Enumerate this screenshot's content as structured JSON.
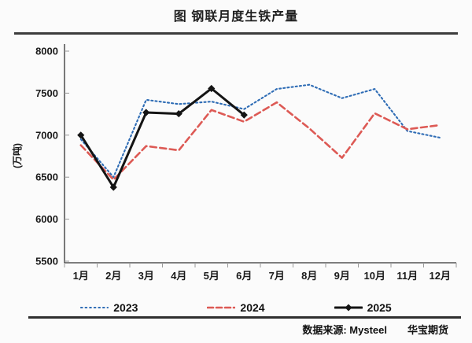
{
  "title": "图  钢联月度生铁产量",
  "source": {
    "text": "数据来源: Mysteel",
    "brand": "华宝期货"
  },
  "chart_data": {
    "type": "line",
    "title": "图  钢联月度生铁产量",
    "xlabel": "",
    "ylabel": "(万吨)",
    "categories": [
      "1月",
      "2月",
      "3月",
      "4月",
      "5月",
      "6月",
      "7月",
      "8月",
      "9月",
      "10月",
      "11月",
      "12月"
    ],
    "ylim": [
      5500,
      8000
    ],
    "ytick_step": 500,
    "yticks": [
      5500,
      6000,
      6500,
      7000,
      7500,
      8000
    ],
    "grid": false,
    "legend_position": "bottom",
    "axis_color": "#333333",
    "tick_color": "#999999",
    "label_color": "#1a1a1a",
    "series": [
      {
        "name": "2023",
        "color": "#2e6cb5",
        "style": "dotted",
        "marker": "none",
        "values": [
          6950,
          6500,
          7420,
          7370,
          7400,
          7310,
          7550,
          7600,
          7440,
          7550,
          7050,
          6970
        ]
      },
      {
        "name": "2024",
        "color": "#dd5a55",
        "style": "dashed",
        "marker": "none",
        "values": [
          6880,
          6470,
          6870,
          6820,
          7300,
          7160,
          7390,
          7080,
          6730,
          7260,
          7070,
          7120
        ]
      },
      {
        "name": "2025",
        "color": "#141414",
        "style": "solid",
        "marker": "diamond",
        "values": [
          7000,
          6380,
          7270,
          7255,
          7555,
          7240,
          null,
          null,
          null,
          null,
          null,
          null
        ]
      }
    ]
  }
}
